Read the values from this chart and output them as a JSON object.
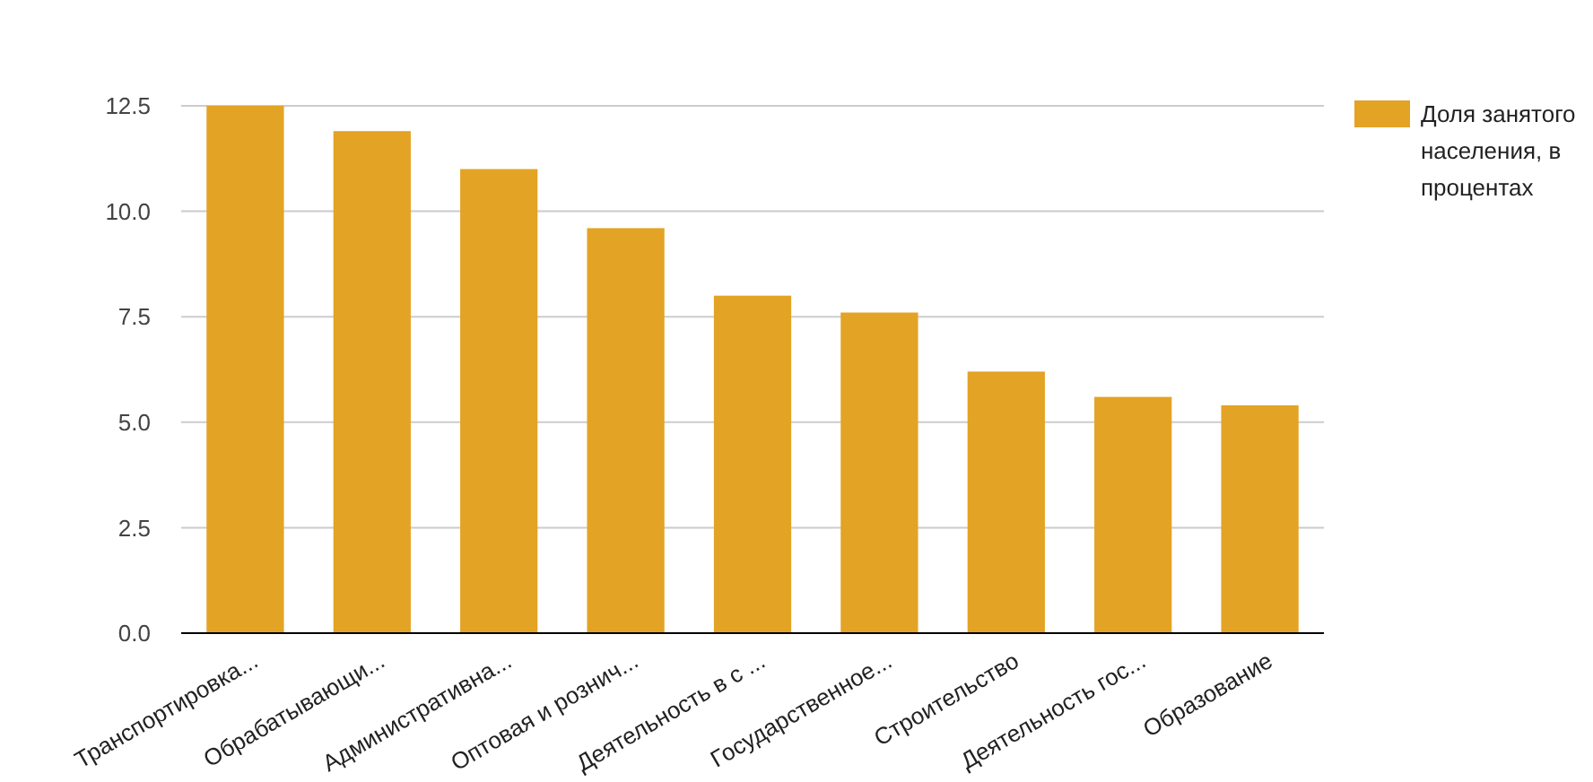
{
  "chart_data": {
    "type": "bar",
    "categories": [
      "Транспортировка...",
      "Обрабатывающи...",
      "Административна...",
      "Оптовая и рознич...",
      "Деятельность в с ...",
      "Государственное...",
      "Строительство",
      "Деятельность гос...",
      "Образование"
    ],
    "series": [
      {
        "name": "Доля занятого населения, в процентах",
        "color": "#e3a324",
        "values": [
          12.5,
          11.9,
          11.0,
          9.6,
          8.0,
          7.6,
          6.2,
          5.6,
          5.4
        ]
      }
    ],
    "ylim": [
      0,
      12.5
    ],
    "yticks": [
      {
        "value": 0,
        "label": "0.0"
      },
      {
        "value": 2.5,
        "label": "2.5"
      },
      {
        "value": 5,
        "label": "5.0"
      },
      {
        "value": 7.5,
        "label": "7.5"
      },
      {
        "value": 10,
        "label": "10.0"
      },
      {
        "value": 12.5,
        "label": "12.5"
      }
    ],
    "grid": "y",
    "legend": "top right"
  }
}
